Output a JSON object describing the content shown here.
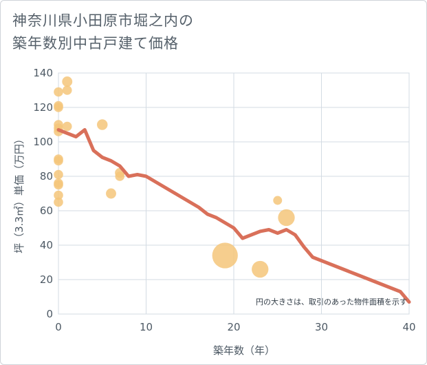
{
  "title_lines": [
    "神奈川県小田原市堀之内の",
    "築年数別中古戸建て価格"
  ],
  "chart_data": {
    "type": "scatter",
    "title": "神奈川県小田原市堀之内の築年数別中古戸建て価格",
    "xlabel": "築年数（年）",
    "ylabel": "坪（3.3㎡）単価（万円）",
    "xlim": [
      0,
      40
    ],
    "ylim": [
      0,
      140
    ],
    "xticks": [
      0,
      10,
      20,
      30,
      40
    ],
    "yticks": [
      0,
      20,
      40,
      60,
      80,
      100,
      120,
      140
    ],
    "grid": true,
    "annotation": "円の大きさは、取引のあった物件面積を示す",
    "colors": {
      "bubble": "#f5c57a",
      "trend": "#d9705a",
      "grid": "#d3dbe3"
    },
    "points": [
      {
        "x": 0,
        "y": 129,
        "size": 1
      },
      {
        "x": 0,
        "y": 121,
        "size": 1
      },
      {
        "x": 0,
        "y": 120,
        "size": 1
      },
      {
        "x": 0,
        "y": 110,
        "size": 1
      },
      {
        "x": 0,
        "y": 108,
        "size": 1
      },
      {
        "x": 0,
        "y": 106,
        "size": 1
      },
      {
        "x": 0,
        "y": 90,
        "size": 1
      },
      {
        "x": 0,
        "y": 89,
        "size": 1
      },
      {
        "x": 0,
        "y": 81,
        "size": 1
      },
      {
        "x": 0,
        "y": 76,
        "size": 1
      },
      {
        "x": 0,
        "y": 75,
        "size": 1
      },
      {
        "x": 0,
        "y": 69,
        "size": 1
      },
      {
        "x": 0,
        "y": 65,
        "size": 1
      },
      {
        "x": 1,
        "y": 135,
        "size": 1.2
      },
      {
        "x": 1,
        "y": 130,
        "size": 1
      },
      {
        "x": 1,
        "y": 109,
        "size": 1
      },
      {
        "x": 5,
        "y": 110,
        "size": 1.3
      },
      {
        "x": 6,
        "y": 70,
        "size": 1.2
      },
      {
        "x": 7,
        "y": 82,
        "size": 1.1
      },
      {
        "x": 7,
        "y": 80,
        "size": 1
      },
      {
        "x": 19,
        "y": 34,
        "size": 7.5
      },
      {
        "x": 23,
        "y": 26,
        "size": 3.2
      },
      {
        "x": 25,
        "y": 66,
        "size": 0.9
      },
      {
        "x": 26,
        "y": 56,
        "size": 3.2
      }
    ],
    "trend": {
      "x": [
        0,
        1,
        2,
        3,
        4,
        5,
        6,
        7,
        8,
        9,
        10,
        11,
        12,
        13,
        14,
        15,
        16,
        17,
        18,
        19,
        20,
        21,
        22,
        23,
        24,
        25,
        26,
        27,
        28,
        29,
        30,
        31,
        32,
        33,
        34,
        35,
        36,
        37,
        38,
        39,
        40
      ],
      "y": [
        107,
        105,
        103,
        107,
        95,
        91,
        89,
        86,
        80,
        81,
        80,
        77,
        74,
        71,
        68,
        65,
        62,
        58,
        56,
        53,
        50,
        44,
        46,
        48,
        49,
        47,
        49,
        46,
        39,
        33,
        31,
        29,
        27,
        25,
        23,
        21,
        19,
        17,
        15,
        13,
        7
      ]
    }
  }
}
